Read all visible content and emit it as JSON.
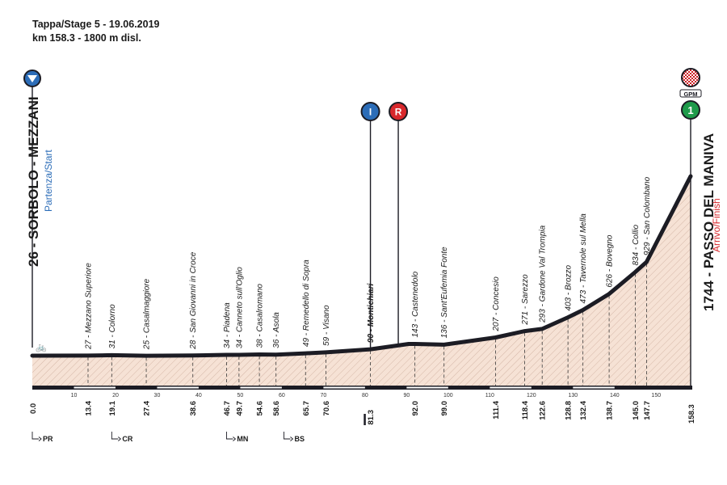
{
  "header": {
    "line1": "Tappa/Stage 5 - 19.06.2019",
    "line2": "km 158.3 - 1800 m disl."
  },
  "start": {
    "name": "26 - SORBOLO - MEZZANI",
    "subtitle": "Partenza/Start",
    "icon": "start-triangle-icon"
  },
  "finish": {
    "name": "1744 - PASSO DEL MANIVA",
    "subtitle": "Arrivo/Finish",
    "badge": "GPM",
    "category": "1",
    "icon": "checkered-flag-icon"
  },
  "markers": [
    {
      "letter": "I",
      "km": 81.3,
      "color": "#2c6db8",
      "icon": "intermediate-sprint-icon"
    },
    {
      "letter": "R",
      "km": 88,
      "color": "#d8282c",
      "icon": "feed-zone-icon"
    }
  ],
  "colors": {
    "profile_fill": "#f6e2d5",
    "hatch": "#b88c78",
    "start": "#2c6db8",
    "finish_sub": "#d8282c",
    "gpm": "#1e9a4a"
  },
  "chart_data": {
    "type": "area",
    "xlabel": "",
    "ylabel": "",
    "xlim": [
      0,
      158.3
    ],
    "ylim": [
      0,
      1800
    ],
    "x_ticks": [
      10,
      20,
      30,
      40,
      50,
      60,
      70,
      80,
      90,
      100,
      110,
      120,
      130,
      140,
      150
    ],
    "profile": [
      [
        0,
        26
      ],
      [
        13.4,
        27
      ],
      [
        19.1,
        31
      ],
      [
        27.4,
        25
      ],
      [
        38.6,
        28
      ],
      [
        46.7,
        34
      ],
      [
        49.7,
        34
      ],
      [
        54.6,
        38
      ],
      [
        58.6,
        36
      ],
      [
        65.7,
        49
      ],
      [
        70.6,
        59
      ],
      [
        81.3,
        90
      ],
      [
        90.5,
        143
      ],
      [
        92.0,
        143
      ],
      [
        99.0,
        136
      ],
      [
        111.4,
        207
      ],
      [
        118.4,
        271
      ],
      [
        122.6,
        293
      ],
      [
        128.8,
        403
      ],
      [
        132.4,
        473
      ],
      [
        138.7,
        626
      ],
      [
        145.0,
        834
      ],
      [
        147.7,
        929
      ],
      [
        158.3,
        1744
      ]
    ],
    "waypoints": [
      {
        "km": "13.4",
        "label": "27 - Mezzano Superiore",
        "x": 13.4,
        "y": 27
      },
      {
        "km": "19.1",
        "label": "31 - Colorno",
        "x": 19.1,
        "y": 31
      },
      {
        "km": "27.4",
        "label": "25 - Casalmaggiore",
        "x": 27.4,
        "y": 25
      },
      {
        "km": "38.6",
        "label": "28 - San Giovanni in Croce",
        "x": 38.6,
        "y": 28
      },
      {
        "km": "46.7",
        "label": "34 - Piadena",
        "x": 46.7,
        "y": 34
      },
      {
        "km": "49.7",
        "label": "34 - Canneto sull'Oglio",
        "x": 49.7,
        "y": 34
      },
      {
        "km": "54.6",
        "label": "38 - Casalromano",
        "x": 54.6,
        "y": 38
      },
      {
        "km": "58.6",
        "label": "36 - Asola",
        "x": 58.6,
        "y": 36
      },
      {
        "km": "65.7",
        "label": "49 - Remedello di Sopra",
        "x": 65.7,
        "y": 49
      },
      {
        "km": "70.6",
        "label": "59 - Visano",
        "x": 70.6,
        "y": 59
      },
      {
        "km": "81.3",
        "label": "90 - Montichiari",
        "x": 81.3,
        "y": 90,
        "bold": true
      },
      {
        "km": "92.0",
        "label": "143 - Castenedolo",
        "x": 92.0,
        "y": 143
      },
      {
        "km": "99.0",
        "label": "136 - Sant'Eufemia Fonte",
        "x": 99.0,
        "y": 136
      },
      {
        "km": "111.4",
        "label": "207 - Concesio",
        "x": 111.4,
        "y": 207
      },
      {
        "km": "118.4",
        "label": "271 - Sarezzo",
        "x": 118.4,
        "y": 271
      },
      {
        "km": "122.6",
        "label": "293 - Gardone Val Trompia",
        "x": 122.6,
        "y": 293
      },
      {
        "km": "128.8",
        "label": "403 - Brozzo",
        "x": 128.8,
        "y": 403
      },
      {
        "km": "132.4",
        "label": "473 - Tavernole sul Mella",
        "x": 132.4,
        "y": 473
      },
      {
        "km": "138.7",
        "label": "626 - Bovegno",
        "x": 138.7,
        "y": 626
      },
      {
        "km": "145.0",
        "label": "834 - Collio",
        "x": 145.0,
        "y": 834
      },
      {
        "km": "147.7",
        "label": "929 - San Colombano",
        "x": 147.7,
        "y": 929
      }
    ],
    "start_km": "0.0",
    "finish_km": "158.3",
    "sections": [
      {
        "km": 0,
        "label": "PR"
      },
      {
        "km": 19.1,
        "label": "CR"
      },
      {
        "km": 46.7,
        "label": "MN"
      },
      {
        "km": 60.5,
        "label": "BS"
      }
    ]
  }
}
